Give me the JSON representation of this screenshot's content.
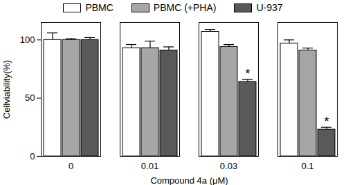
{
  "chart_data": {
    "type": "bar",
    "x_label": "Compound 4a (μM)",
    "y_label": "Cellviability(%)",
    "categories": [
      "0",
      "0.01",
      "0.03",
      "0.1"
    ],
    "series": [
      {
        "name": "PBMC",
        "color": "#ffffff",
        "values": [
          100,
          93,
          107,
          97
        ],
        "errors": [
          6,
          3,
          2,
          3
        ]
      },
      {
        "name": "PBMC (+PHA)",
        "color": "#a6a6a6",
        "values": [
          100,
          93,
          94,
          91
        ],
        "errors": [
          1,
          6,
          2,
          2
        ]
      },
      {
        "name": "U-937",
        "color": "#595959",
        "values": [
          100,
          91,
          64,
          23
        ],
        "errors": [
          2,
          3,
          2,
          2
        ]
      }
    ],
    "annotations": [
      {
        "category": "0.03",
        "series": "U-937",
        "text": "*"
      },
      {
        "category": "0.1",
        "series": "U-937",
        "text": "*"
      }
    ],
    "ylim": [
      0,
      115
    ],
    "yticks": [
      0,
      50,
      100
    ],
    "legend": "top",
    "grid": false
  }
}
